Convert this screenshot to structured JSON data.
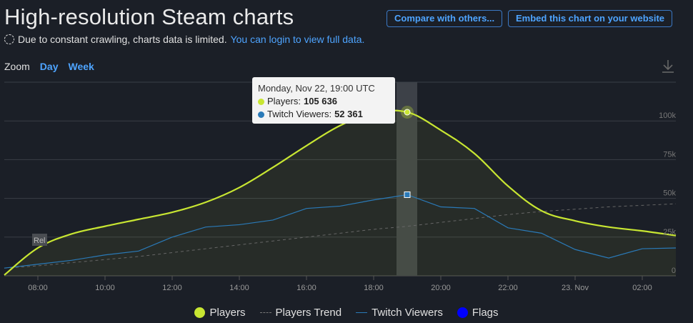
{
  "header": {
    "title": "High-resolution Steam charts",
    "compare_label": "Compare with others...",
    "embed_label": "Embed this chart on your website"
  },
  "notice": {
    "text": "Due to constant crawling, charts data is limited.",
    "link": "You can login to view full data."
  },
  "zoom": {
    "label": "Zoom",
    "options": [
      "Day",
      "Week"
    ]
  },
  "tooltip": {
    "title": "Monday, Nov 22, 19:00 UTC",
    "players_label": "Players:",
    "players_value": "105 636",
    "twitch_label": "Twitch Viewers:",
    "twitch_value": "52 361"
  },
  "marker_label": "Rel",
  "legend": {
    "players": "Players",
    "trend": "Players Trend",
    "twitch": "Twitch Viewers",
    "flags": "Flags"
  },
  "colors": {
    "players": "#c8e632",
    "trend": "#666666",
    "twitch": "#2a7ab8",
    "flags": "#0000ff",
    "background": "#1b1f27"
  },
  "chart_data": {
    "type": "line",
    "x": [
      "07:00",
      "08:00",
      "09:00",
      "10:00",
      "11:00",
      "12:00",
      "13:00",
      "14:00",
      "15:00",
      "16:00",
      "17:00",
      "18:00",
      "19:00",
      "20:00",
      "21:00",
      "22:00",
      "23:00",
      "00:00",
      "01:00",
      "02:00",
      "03:00"
    ],
    "x_ticks": [
      "08:00",
      "10:00",
      "12:00",
      "14:00",
      "16:00",
      "18:00",
      "20:00",
      "22:00",
      "23. Nov",
      "02:00"
    ],
    "y_ticks": [
      "0",
      "25k",
      "50k",
      "75k",
      "100k"
    ],
    "ylim": [
      0,
      125000
    ],
    "series": [
      {
        "name": "Players",
        "values": [
          500,
          18000,
          27000,
          32000,
          36500,
          41000,
          47500,
          57000,
          70000,
          84000,
          97000,
          105000,
          105636,
          94000,
          79000,
          58000,
          42000,
          35500,
          31500,
          29000,
          26000
        ]
      },
      {
        "name": "Players Trend",
        "values": [
          5000,
          6500,
          8500,
          10500,
          12500,
          15000,
          17500,
          20000,
          22500,
          25000,
          27500,
          30000,
          32000,
          34500,
          37000,
          39500,
          41500,
          43000,
          44500,
          45500,
          46500
        ]
      },
      {
        "name": "Twitch Viewers",
        "values": [
          5000,
          7500,
          10000,
          13500,
          16000,
          25000,
          31500,
          33000,
          36000,
          43500,
          45000,
          49000,
          52361,
          44500,
          43500,
          31000,
          27500,
          17000,
          11500,
          17500,
          18000
        ]
      }
    ],
    "highlight": {
      "x": "19:00",
      "players": 105636,
      "twitch": 52361
    }
  }
}
